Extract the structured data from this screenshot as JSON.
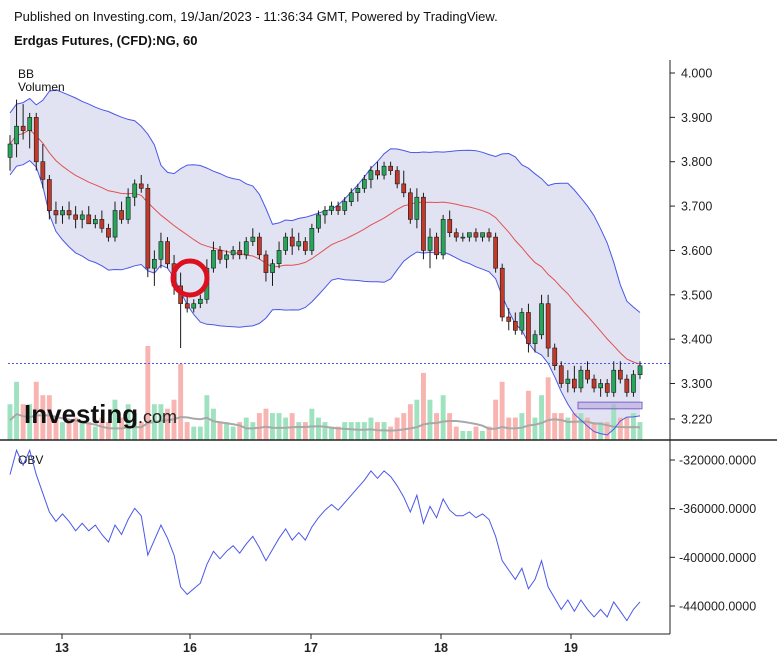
{
  "header": {
    "published": "Published on Investing.com, 19/Jan/2023 - 11:36:34 GMT, Powered by TradingView.",
    "title": "Erdgas Futures, (CFD):NG, 60"
  },
  "legend": {
    "bb": "BB",
    "volume": "Volumen",
    "obv": "OBV"
  },
  "watermark": {
    "brand": "Investing",
    "suffix": ".com"
  },
  "colors": {
    "up": "#26a65b",
    "down": "#c0392b",
    "band": "#4b57e8",
    "band_fill": "#e2e3f2",
    "basis": "#e05252",
    "obv": "#4b57e8",
    "vol_up": "#9fe2c0",
    "vol_down": "#f8b4b0",
    "vol_ma": "#a8a8a8",
    "circle": "#dd1020",
    "box": "#b7a7e0"
  },
  "chart_data": [
    {
      "type": "candlestick",
      "ylim": [
        3.18,
        4.04
      ],
      "yticks": [
        "4.000",
        "3.900",
        "3.800",
        "3.700",
        "3.600",
        "3.500",
        "3.400",
        "3.300",
        "3.220"
      ],
      "xticks": [
        "13",
        "16",
        "17",
        "18",
        "19"
      ],
      "series_ohlc": [
        [
          3.81,
          3.86,
          3.78,
          3.84
        ],
        [
          3.84,
          3.94,
          3.81,
          3.88
        ],
        [
          3.88,
          3.93,
          3.85,
          3.87
        ],
        [
          3.87,
          3.91,
          3.83,
          3.9
        ],
        [
          3.9,
          3.91,
          3.78,
          3.8
        ],
        [
          3.8,
          3.84,
          3.74,
          3.76
        ],
        [
          3.76,
          3.77,
          3.67,
          3.69
        ],
        [
          3.69,
          3.71,
          3.66,
          3.68
        ],
        [
          3.68,
          3.7,
          3.66,
          3.69
        ],
        [
          3.69,
          3.71,
          3.67,
          3.68
        ],
        [
          3.68,
          3.7,
          3.65,
          3.67
        ],
        [
          3.67,
          3.69,
          3.65,
          3.68
        ],
        [
          3.68,
          3.7,
          3.66,
          3.66
        ],
        [
          3.66,
          3.68,
          3.65,
          3.67
        ],
        [
          3.67,
          3.69,
          3.64,
          3.65
        ],
        [
          3.65,
          3.66,
          3.62,
          3.63
        ],
        [
          3.63,
          3.71,
          3.62,
          3.69
        ],
        [
          3.69,
          3.71,
          3.66,
          3.67
        ],
        [
          3.67,
          3.74,
          3.66,
          3.72
        ],
        [
          3.72,
          3.76,
          3.7,
          3.75
        ],
        [
          3.75,
          3.77,
          3.73,
          3.74
        ],
        [
          3.74,
          3.75,
          3.54,
          3.56
        ],
        [
          3.56,
          3.6,
          3.52,
          3.58
        ],
        [
          3.58,
          3.64,
          3.56,
          3.62
        ],
        [
          3.62,
          3.63,
          3.56,
          3.57
        ],
        [
          3.57,
          3.59,
          3.5,
          3.52
        ],
        [
          3.52,
          3.55,
          3.38,
          3.48
        ],
        [
          3.48,
          3.5,
          3.46,
          3.47
        ],
        [
          3.47,
          3.49,
          3.46,
          3.48
        ],
        [
          3.48,
          3.5,
          3.47,
          3.49
        ],
        [
          3.49,
          3.58,
          3.48,
          3.56
        ],
        [
          3.56,
          3.62,
          3.55,
          3.6
        ],
        [
          3.6,
          3.61,
          3.57,
          3.58
        ],
        [
          3.58,
          3.6,
          3.56,
          3.59
        ],
        [
          3.59,
          3.61,
          3.58,
          3.6
        ],
        [
          3.6,
          3.62,
          3.58,
          3.59
        ],
        [
          3.59,
          3.63,
          3.58,
          3.62
        ],
        [
          3.62,
          3.65,
          3.61,
          3.63
        ],
        [
          3.63,
          3.64,
          3.58,
          3.59
        ],
        [
          3.59,
          3.6,
          3.53,
          3.55
        ],
        [
          3.55,
          3.58,
          3.52,
          3.57
        ],
        [
          3.57,
          3.62,
          3.56,
          3.6
        ],
        [
          3.6,
          3.64,
          3.59,
          3.63
        ],
        [
          3.63,
          3.65,
          3.59,
          3.61
        ],
        [
          3.61,
          3.64,
          3.6,
          3.62
        ],
        [
          3.62,
          3.63,
          3.59,
          3.6
        ],
        [
          3.6,
          3.66,
          3.59,
          3.65
        ],
        [
          3.65,
          3.69,
          3.64,
          3.68
        ],
        [
          3.68,
          3.7,
          3.66,
          3.69
        ],
        [
          3.69,
          3.71,
          3.68,
          3.7
        ],
        [
          3.7,
          3.71,
          3.68,
          3.69
        ],
        [
          3.69,
          3.72,
          3.68,
          3.71
        ],
        [
          3.71,
          3.74,
          3.7,
          3.73
        ],
        [
          3.73,
          3.75,
          3.71,
          3.74
        ],
        [
          3.74,
          3.77,
          3.73,
          3.76
        ],
        [
          3.76,
          3.79,
          3.74,
          3.78
        ],
        [
          3.78,
          3.8,
          3.76,
          3.77
        ],
        [
          3.77,
          3.8,
          3.76,
          3.79
        ],
        [
          3.79,
          3.8,
          3.77,
          3.78
        ],
        [
          3.78,
          3.79,
          3.74,
          3.75
        ],
        [
          3.75,
          3.78,
          3.72,
          3.73
        ],
        [
          3.73,
          3.74,
          3.66,
          3.67
        ],
        [
          3.67,
          3.74,
          3.65,
          3.72
        ],
        [
          3.72,
          3.73,
          3.58,
          3.6
        ],
        [
          3.6,
          3.65,
          3.56,
          3.63
        ],
        [
          3.63,
          3.64,
          3.58,
          3.59
        ],
        [
          3.59,
          3.68,
          3.58,
          3.67
        ],
        [
          3.67,
          3.69,
          3.63,
          3.64
        ],
        [
          3.64,
          3.65,
          3.62,
          3.63
        ],
        [
          3.63,
          3.64,
          3.62,
          3.63
        ],
        [
          3.63,
          3.64,
          3.62,
          3.64
        ],
        [
          3.64,
          3.65,
          3.62,
          3.63
        ],
        [
          3.63,
          3.64,
          3.62,
          3.64
        ],
        [
          3.64,
          3.65,
          3.62,
          3.63
        ],
        [
          3.63,
          3.64,
          3.55,
          3.56
        ],
        [
          3.56,
          3.57,
          3.44,
          3.45
        ],
        [
          3.45,
          3.47,
          3.42,
          3.44
        ],
        [
          3.44,
          3.46,
          3.41,
          3.42
        ],
        [
          3.42,
          3.47,
          3.41,
          3.46
        ],
        [
          3.46,
          3.48,
          3.37,
          3.39
        ],
        [
          3.39,
          3.42,
          3.37,
          3.41
        ],
        [
          3.41,
          3.5,
          3.4,
          3.48
        ],
        [
          3.48,
          3.5,
          3.36,
          3.38
        ],
        [
          3.38,
          3.39,
          3.33,
          3.34
        ],
        [
          3.34,
          3.35,
          3.29,
          3.3
        ],
        [
          3.3,
          3.33,
          3.28,
          3.31
        ],
        [
          3.31,
          3.34,
          3.28,
          3.29
        ],
        [
          3.29,
          3.34,
          3.28,
          3.33
        ],
        [
          3.33,
          3.35,
          3.3,
          3.31
        ],
        [
          3.31,
          3.32,
          3.28,
          3.29
        ],
        [
          3.29,
          3.31,
          3.27,
          3.3
        ],
        [
          3.3,
          3.31,
          3.27,
          3.28
        ],
        [
          3.28,
          3.35,
          3.27,
          3.33
        ],
        [
          3.33,
          3.35,
          3.3,
          3.31
        ],
        [
          3.31,
          3.32,
          3.27,
          3.28
        ],
        [
          3.28,
          3.33,
          3.27,
          3.32
        ],
        [
          3.32,
          3.35,
          3.31,
          3.34
        ]
      ],
      "last_price_level": 3.345,
      "highlight_zone": [
        3.243,
        3.258
      ]
    },
    {
      "type": "line",
      "series_name": "OBV",
      "ylim": [
        -458000,
        -310000
      ],
      "yticks": [
        "-320000.0000",
        "-360000.0000",
        "-400000.0000",
        "-440000.0000"
      ]
    }
  ]
}
